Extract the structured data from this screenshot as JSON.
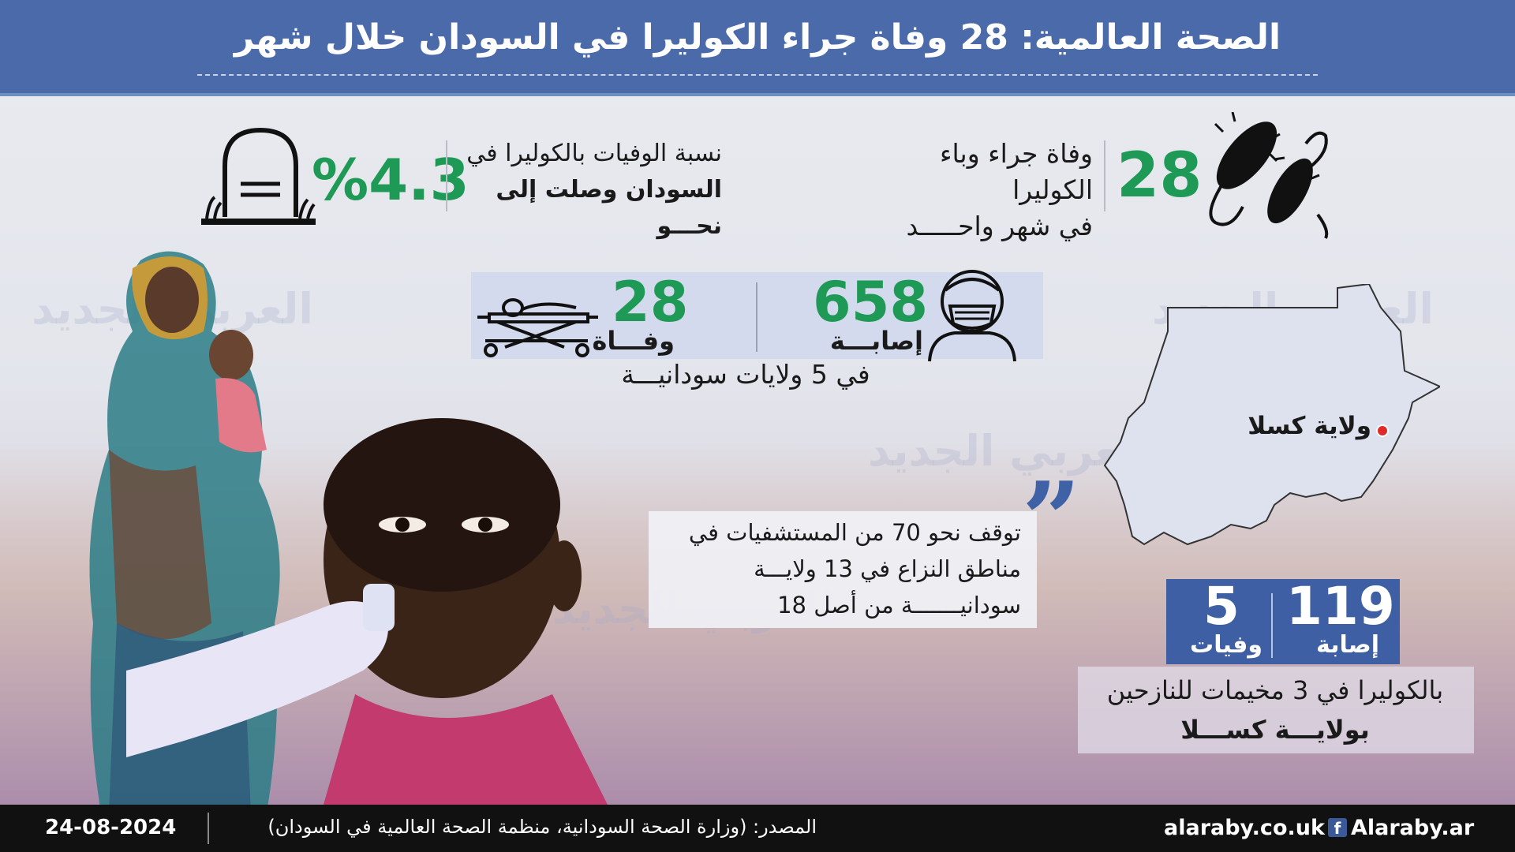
{
  "header": {
    "title": "الصحة العالمية: 28 وفاة جراء الكوليرا في السودان خلال شهر"
  },
  "stat_month": {
    "number": "28",
    "line1": "وفاة جراء وباء الكوليرا",
    "line2": "في شهر واحـــــد",
    "icon": "bacteria-icon"
  },
  "stat_cfr": {
    "number": "%4.3",
    "line1": "نسبة الوفيات بالكوليرا في",
    "line2": "السودان وصلت إلى نحـــو",
    "icon": "tombstone-icon"
  },
  "states_stats": {
    "cases_number": "658",
    "cases_label": "إصابـــة",
    "deaths_number": "28",
    "deaths_label": "وفـــاة",
    "states_text": "في 5 ولايات سودانيـــة",
    "cases_icon": "masked-person-icon",
    "deaths_icon": "stretcher-icon"
  },
  "quote": {
    "line1": "توقف نحو 70 من المستشفيات في",
    "line2": "مناطق النزاع في 13 ولايـــة",
    "line3": "سودانيـــــــة من أصل 18",
    "icon": "quote-mark-icon"
  },
  "map": {
    "label": "ولاية كسلا",
    "icon": "sudan-map-icon"
  },
  "kassala": {
    "cases_number": "119",
    "cases_label": "إصابة",
    "deaths_number": "5",
    "deaths_label": "وفيات",
    "line1": "بالكوليرا في 3 مخيمات للنازحين",
    "line2": "بولايـــة كســـلا"
  },
  "watermark": {
    "text": "العربي الجديد"
  },
  "footer": {
    "date": "24-08-2024",
    "source": "المصدر: (وزارة الصحة السودانية، منظمة الصحة العالمية في السودان)",
    "site": "alaraby.co.uk",
    "facebook": "Alaraby.ar",
    "fb_icon": "facebook-icon"
  },
  "colors": {
    "header_blue": "#4b6aa9",
    "accent_green": "#1f9a56",
    "box_blue": "#3e5fa3",
    "footer_black": "#111111",
    "map_dot": "#e02a2a"
  }
}
